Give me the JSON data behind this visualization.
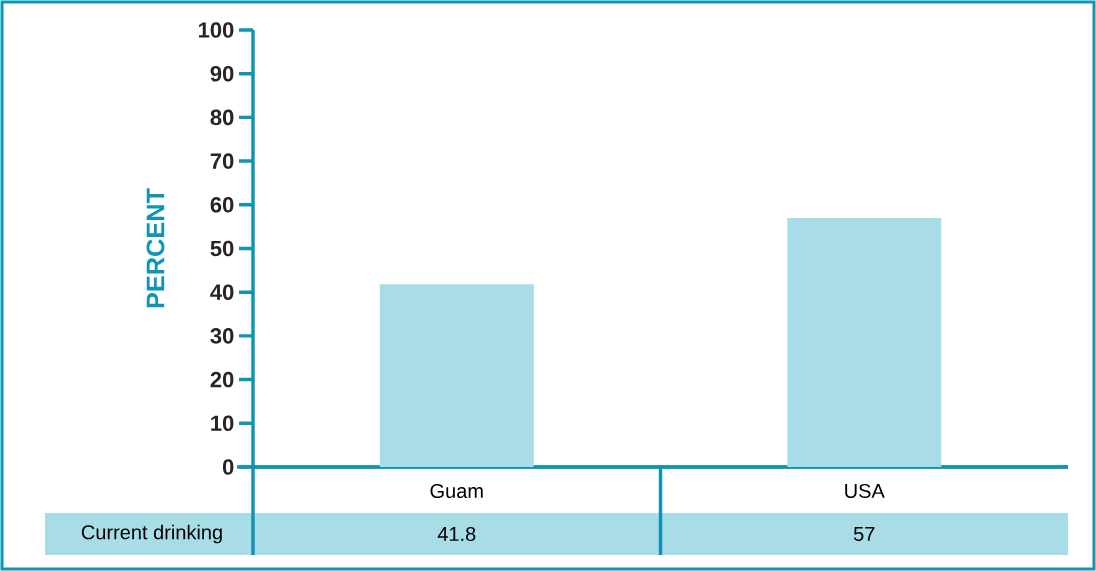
{
  "chart_data": {
    "type": "bar",
    "ylabel": "PERCENT",
    "categories": [
      "Guam",
      "USA"
    ],
    "series": [
      {
        "name": "Current drinking",
        "color": "#a8dce6",
        "values": [
          41.8,
          57
        ]
      }
    ],
    "ylim": [
      0,
      100
    ],
    "yticks": [
      0,
      10,
      20,
      30,
      40,
      50,
      60,
      70,
      80,
      90,
      100
    ],
    "data_labels": true
  }
}
